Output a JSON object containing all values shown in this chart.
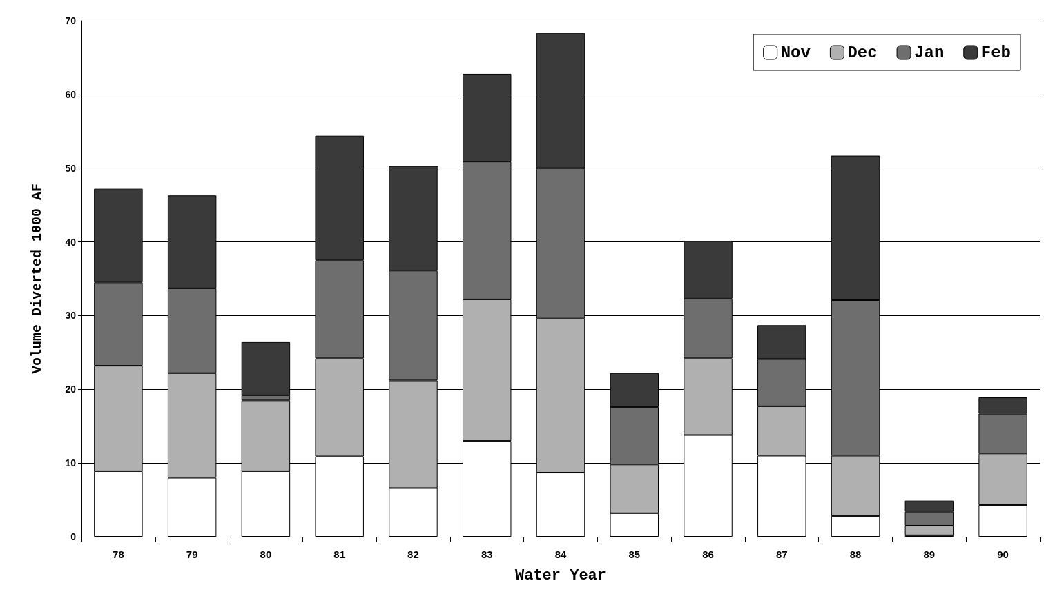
{
  "chart_data": {
    "type": "bar",
    "stacked": true,
    "xlabel": "Water Year",
    "ylabel": "Volume Diverted 1000 AF",
    "categories": [
      "78",
      "79",
      "80",
      "81",
      "82",
      "83",
      "84",
      "85",
      "86",
      "87",
      "88",
      "89",
      "90"
    ],
    "series": [
      {
        "name": "Nov",
        "color": "#ffffff",
        "values": [
          8.9,
          8.0,
          8.9,
          10.9,
          6.6,
          13.0,
          8.7,
          3.2,
          13.8,
          11.0,
          2.8,
          0.2,
          4.3
        ]
      },
      {
        "name": "Dec",
        "color": "#b0b0b0",
        "values": [
          14.3,
          14.2,
          9.6,
          13.3,
          14.6,
          19.2,
          20.9,
          6.6,
          10.4,
          6.7,
          8.2,
          1.3,
          7.0
        ]
      },
      {
        "name": "Jan",
        "color": "#6e6e6e",
        "values": [
          11.3,
          11.5,
          0.7,
          13.3,
          14.9,
          18.7,
          20.4,
          7.8,
          8.1,
          6.4,
          21.1,
          1.9,
          5.4
        ]
      },
      {
        "name": "Feb",
        "color": "#3a3a3a",
        "values": [
          12.7,
          12.6,
          7.2,
          16.9,
          14.2,
          11.9,
          18.3,
          4.6,
          7.8,
          4.6,
          19.6,
          1.5,
          2.2
        ]
      }
    ],
    "ylim": [
      0,
      70
    ],
    "yticks": [
      0,
      10,
      20,
      30,
      40,
      50,
      60,
      70
    ],
    "grid": "y",
    "legend": "top right"
  }
}
